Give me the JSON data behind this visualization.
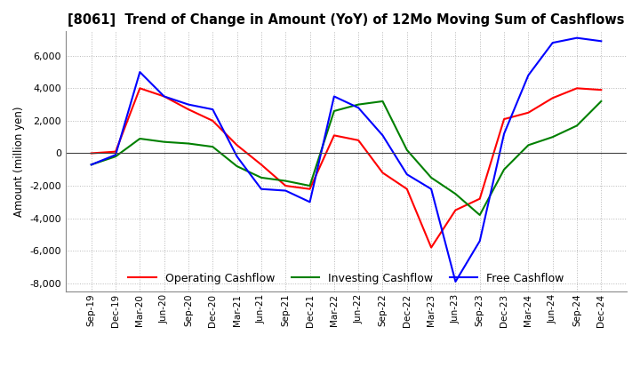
{
  "title": "[8061]  Trend of Change in Amount (YoY) of 12Mo Moving Sum of Cashflows",
  "ylabel": "Amount (million yen)",
  "ylim": [
    -8500,
    7500
  ],
  "yticks": [
    -8000,
    -6000,
    -4000,
    -2000,
    0,
    2000,
    4000,
    6000
  ],
  "background_color": "#ffffff",
  "grid_color": "#b0b0b0",
  "labels": [
    "Sep-19",
    "Dec-19",
    "Mar-20",
    "Jun-20",
    "Sep-20",
    "Dec-20",
    "Mar-21",
    "Jun-21",
    "Sep-21",
    "Dec-21",
    "Mar-22",
    "Jun-22",
    "Sep-22",
    "Dec-22",
    "Mar-23",
    "Jun-23",
    "Sep-23",
    "Dec-23",
    "Mar-24",
    "Jun-24",
    "Sep-24",
    "Dec-24"
  ],
  "operating": [
    0,
    100,
    4000,
    3500,
    2700,
    2000,
    500,
    -700,
    -2000,
    -2200,
    1100,
    800,
    -1200,
    -2200,
    -5800,
    -3500,
    -2800,
    2100,
    2500,
    3400,
    4000,
    3900
  ],
  "investing": [
    -700,
    -200,
    900,
    700,
    600,
    400,
    -800,
    -1500,
    -1700,
    -2000,
    2600,
    3000,
    3200,
    200,
    -1500,
    -2500,
    -3800,
    -1000,
    500,
    1000,
    1700,
    3200
  ],
  "free": [
    -700,
    -100,
    5000,
    3500,
    3000,
    2700,
    -200,
    -2200,
    -2300,
    -3000,
    3500,
    2800,
    1100,
    -1300,
    -2200,
    -7900,
    -5400,
    1200,
    4800,
    6800,
    7100,
    6900
  ],
  "operating_color": "#ff0000",
  "investing_color": "#008000",
  "free_color": "#0000ff",
  "legend_labels": [
    "Operating Cashflow",
    "Investing Cashflow",
    "Free Cashflow"
  ]
}
